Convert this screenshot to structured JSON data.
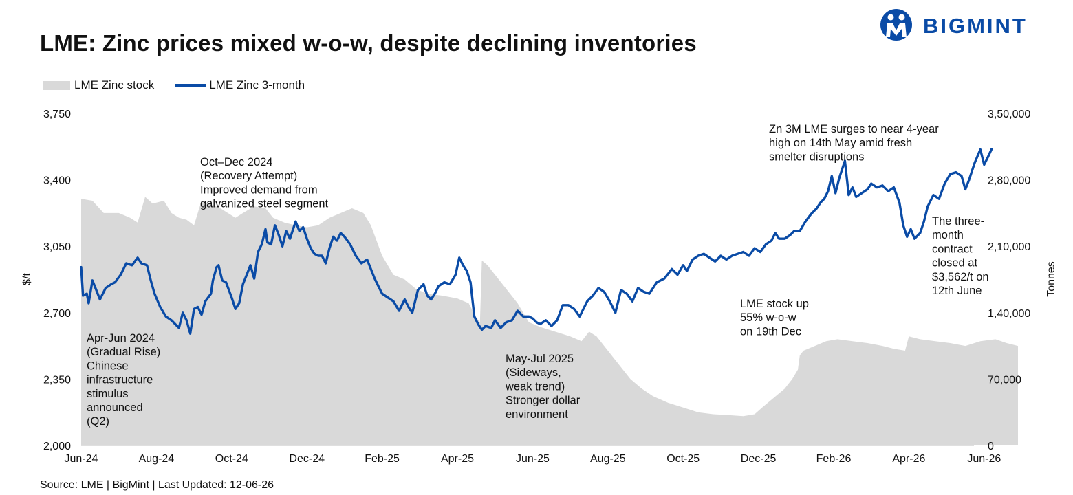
{
  "title": "LME: Zinc prices mixed w-o-w, despite declining inventories",
  "brand": {
    "name": "BIGMINT",
    "color": "#0a4ba6",
    "icon": "bigmint-logo-icon"
  },
  "source": "Source: LME | BigMint | Last Updated: 12-06-26",
  "colors": {
    "line": "#0a4ba6",
    "area": "#d9d9d9"
  },
  "chart_data": {
    "type": "line",
    "legend": {
      "placement": "top-left",
      "entries": [
        "LME Zinc stock",
        "LME Zinc 3-month"
      ]
    },
    "y_left": {
      "label": "$/t",
      "range": [
        2000,
        3750
      ],
      "ticks": [
        "2,000",
        "2,350",
        "2,700",
        "3,050",
        "3,400",
        "3,750"
      ]
    },
    "y_right": {
      "label": "Tonnes",
      "range": [
        0,
        350000
      ],
      "ticks": [
        "0",
        "70,000",
        "1,40,000",
        "2,10,000",
        "2,80,000",
        "3,50,000"
      ]
    },
    "x_range": [
      0,
      24
    ],
    "x_ticks": [
      "Jun-24",
      "Aug-24",
      "Oct-24",
      "Dec-24",
      "Feb-25",
      "Apr-25",
      "Jun-25",
      "Aug-25",
      "Oct-25",
      "Dec-25",
      "Feb-26",
      "Apr-26",
      "Jun-26"
    ],
    "grid": false,
    "series": [
      {
        "name": "LME Zinc 3-month",
        "axis": "left",
        "kind": "line",
        "points": [
          [
            0,
            2940
          ],
          [
            0.05,
            2790
          ],
          [
            0.15,
            2800
          ],
          [
            0.2,
            2750
          ],
          [
            0.3,
            2870
          ],
          [
            0.4,
            2820
          ],
          [
            0.5,
            2770
          ],
          [
            0.65,
            2830
          ],
          [
            0.8,
            2850
          ],
          [
            0.9,
            2860
          ],
          [
            1.05,
            2900
          ],
          [
            1.2,
            2960
          ],
          [
            1.35,
            2950
          ],
          [
            1.5,
            2990
          ],
          [
            1.6,
            2960
          ],
          [
            1.75,
            2950
          ],
          [
            1.85,
            2870
          ],
          [
            1.95,
            2800
          ],
          [
            2.1,
            2730
          ],
          [
            2.25,
            2680
          ],
          [
            2.4,
            2660
          ],
          [
            2.5,
            2640
          ],
          [
            2.6,
            2620
          ],
          [
            2.7,
            2700
          ],
          [
            2.8,
            2660
          ],
          [
            2.9,
            2590
          ],
          [
            3.0,
            2720
          ],
          [
            3.1,
            2730
          ],
          [
            3.2,
            2690
          ],
          [
            3.3,
            2760
          ],
          [
            3.45,
            2800
          ],
          [
            3.5,
            2870
          ],
          [
            3.6,
            2940
          ],
          [
            3.65,
            2950
          ],
          [
            3.75,
            2870
          ],
          [
            3.85,
            2860
          ],
          [
            4.0,
            2780
          ],
          [
            4.1,
            2720
          ],
          [
            4.2,
            2750
          ],
          [
            4.3,
            2850
          ],
          [
            4.4,
            2900
          ],
          [
            4.5,
            2950
          ],
          [
            4.6,
            2880
          ],
          [
            4.7,
            3020
          ],
          [
            4.8,
            3060
          ],
          [
            4.9,
            3140
          ],
          [
            4.95,
            3070
          ],
          [
            5.05,
            3060
          ],
          [
            5.15,
            3160
          ],
          [
            5.25,
            3110
          ],
          [
            5.35,
            3050
          ],
          [
            5.45,
            3130
          ],
          [
            5.55,
            3090
          ],
          [
            5.7,
            3180
          ],
          [
            5.8,
            3130
          ],
          [
            5.9,
            3150
          ],
          [
            6.0,
            3090
          ],
          [
            6.1,
            3040
          ],
          [
            6.2,
            3010
          ],
          [
            6.3,
            3000
          ],
          [
            6.4,
            3000
          ],
          [
            6.5,
            2960
          ],
          [
            6.6,
            3040
          ],
          [
            6.7,
            3100
          ],
          [
            6.8,
            3080
          ],
          [
            6.9,
            3120
          ],
          [
            7.0,
            3100
          ],
          [
            7.15,
            3060
          ],
          [
            7.3,
            3000
          ],
          [
            7.45,
            2960
          ],
          [
            7.6,
            2980
          ],
          [
            7.7,
            2930
          ],
          [
            7.8,
            2880
          ],
          [
            7.9,
            2840
          ],
          [
            8.0,
            2800
          ],
          [
            8.15,
            2780
          ],
          [
            8.3,
            2760
          ],
          [
            8.45,
            2710
          ],
          [
            8.6,
            2770
          ],
          [
            8.7,
            2730
          ],
          [
            8.8,
            2700
          ],
          [
            8.95,
            2820
          ],
          [
            9.1,
            2850
          ],
          [
            9.2,
            2790
          ],
          [
            9.3,
            2770
          ],
          [
            9.4,
            2800
          ],
          [
            9.5,
            2840
          ],
          [
            9.65,
            2860
          ],
          [
            9.8,
            2850
          ],
          [
            9.95,
            2900
          ],
          [
            10.05,
            2990
          ],
          [
            10.15,
            2950
          ],
          [
            10.25,
            2920
          ],
          [
            10.35,
            2860
          ],
          [
            10.45,
            2680
          ],
          [
            10.55,
            2640
          ],
          [
            10.65,
            2610
          ],
          [
            10.75,
            2630
          ],
          [
            10.9,
            2620
          ],
          [
            11.0,
            2660
          ],
          [
            11.15,
            2620
          ],
          [
            11.3,
            2650
          ],
          [
            11.45,
            2660
          ],
          [
            11.6,
            2710
          ],
          [
            11.75,
            2680
          ],
          [
            11.9,
            2680
          ],
          [
            12.0,
            2670
          ],
          [
            12.1,
            2650
          ],
          [
            12.2,
            2640
          ],
          [
            12.35,
            2660
          ],
          [
            12.5,
            2630
          ],
          [
            12.65,
            2660
          ],
          [
            12.8,
            2740
          ],
          [
            12.95,
            2740
          ],
          [
            13.1,
            2720
          ],
          [
            13.25,
            2680
          ],
          [
            13.45,
            2760
          ],
          [
            13.6,
            2790
          ],
          [
            13.75,
            2830
          ],
          [
            13.9,
            2810
          ],
          [
            14.05,
            2760
          ],
          [
            14.2,
            2700
          ],
          [
            14.35,
            2820
          ],
          [
            14.5,
            2800
          ],
          [
            14.65,
            2760
          ],
          [
            14.8,
            2830
          ],
          [
            14.95,
            2810
          ],
          [
            15.1,
            2800
          ],
          [
            15.3,
            2860
          ],
          [
            15.5,
            2880
          ],
          [
            15.7,
            2930
          ],
          [
            15.85,
            2900
          ],
          [
            16.0,
            2950
          ],
          [
            16.1,
            2920
          ],
          [
            16.25,
            2980
          ],
          [
            16.4,
            3000
          ],
          [
            16.55,
            3010
          ],
          [
            16.7,
            2990
          ],
          [
            16.85,
            2970
          ],
          [
            17.0,
            3000
          ],
          [
            17.15,
            2980
          ],
          [
            17.3,
            3000
          ],
          [
            17.45,
            3010
          ],
          [
            17.6,
            3020
          ],
          [
            17.75,
            3000
          ],
          [
            17.9,
            3040
          ],
          [
            18.05,
            3020
          ],
          [
            18.2,
            3060
          ],
          [
            18.35,
            3080
          ],
          [
            18.45,
            3120
          ],
          [
            18.55,
            3090
          ],
          [
            18.7,
            3090
          ],
          [
            18.85,
            3110
          ],
          [
            18.95,
            3130
          ],
          [
            19.1,
            3130
          ],
          [
            19.25,
            3180
          ],
          [
            19.4,
            3220
          ],
          [
            19.55,
            3250
          ],
          [
            19.65,
            3280
          ],
          [
            19.75,
            3300
          ],
          [
            19.85,
            3340
          ],
          [
            19.95,
            3420
          ],
          [
            20.05,
            3330
          ],
          [
            20.15,
            3410
          ],
          [
            20.3,
            3500
          ],
          [
            20.4,
            3320
          ],
          [
            20.5,
            3360
          ],
          [
            20.6,
            3310
          ],
          [
            20.75,
            3330
          ],
          [
            20.9,
            3350
          ],
          [
            21.0,
            3380
          ],
          [
            21.15,
            3360
          ],
          [
            21.3,
            3370
          ],
          [
            21.45,
            3340
          ],
          [
            21.6,
            3360
          ],
          [
            21.75,
            3280
          ],
          [
            21.85,
            3160
          ],
          [
            21.95,
            3100
          ],
          [
            22.05,
            3140
          ],
          [
            22.15,
            3090
          ],
          [
            22.3,
            3120
          ],
          [
            22.4,
            3180
          ],
          [
            22.5,
            3260
          ],
          [
            22.65,
            3320
          ],
          [
            22.8,
            3300
          ],
          [
            22.95,
            3380
          ],
          [
            23.1,
            3430
          ],
          [
            23.25,
            3440
          ],
          [
            23.4,
            3420
          ],
          [
            23.5,
            3350
          ],
          [
            23.6,
            3400
          ],
          [
            23.75,
            3490
          ],
          [
            23.9,
            3560
          ],
          [
            24.0,
            3480
          ],
          [
            24.1,
            3520
          ],
          [
            24.2,
            3562
          ]
        ]
      },
      {
        "name": "LME Zinc stock",
        "axis": "right",
        "kind": "area",
        "points": [
          [
            0,
            260000
          ],
          [
            0.3,
            258000
          ],
          [
            0.6,
            245000
          ],
          [
            1.0,
            245000
          ],
          [
            1.3,
            240000
          ],
          [
            1.5,
            235000
          ],
          [
            1.7,
            262000
          ],
          [
            1.9,
            255000
          ],
          [
            2.2,
            258000
          ],
          [
            2.4,
            245000
          ],
          [
            2.6,
            240000
          ],
          [
            2.8,
            238000
          ],
          [
            3.0,
            232000
          ],
          [
            3.2,
            258000
          ],
          [
            3.4,
            255000
          ],
          [
            3.7,
            250000
          ],
          [
            3.9,
            245000
          ],
          [
            4.1,
            240000
          ],
          [
            4.3,
            245000
          ],
          [
            4.6,
            252000
          ],
          [
            4.9,
            250000
          ],
          [
            5.1,
            240000
          ],
          [
            5.4,
            235000
          ],
          [
            5.7,
            232000
          ],
          [
            6.0,
            230000
          ],
          [
            6.3,
            232000
          ],
          [
            6.6,
            240000
          ],
          [
            6.9,
            245000
          ],
          [
            7.2,
            250000
          ],
          [
            7.5,
            245000
          ],
          [
            7.7,
            232000
          ],
          [
            8.0,
            200000
          ],
          [
            8.3,
            180000
          ],
          [
            8.6,
            175000
          ],
          [
            8.9,
            165000
          ],
          [
            9.2,
            160000
          ],
          [
            9.6,
            158000
          ],
          [
            10.0,
            155000
          ],
          [
            10.3,
            150000
          ],
          [
            10.5,
            135000
          ],
          [
            10.6,
            130000
          ],
          [
            10.65,
            195000
          ],
          [
            10.8,
            190000
          ],
          [
            11.0,
            180000
          ],
          [
            11.3,
            165000
          ],
          [
            11.6,
            150000
          ],
          [
            11.9,
            130000
          ],
          [
            12.2,
            125000
          ],
          [
            12.6,
            120000
          ],
          [
            13.0,
            115000
          ],
          [
            13.3,
            110000
          ],
          [
            13.5,
            120000
          ],
          [
            13.7,
            115000
          ],
          [
            14.0,
            100000
          ],
          [
            14.3,
            85000
          ],
          [
            14.6,
            70000
          ],
          [
            14.9,
            60000
          ],
          [
            15.2,
            52000
          ],
          [
            15.6,
            45000
          ],
          [
            16.0,
            40000
          ],
          [
            16.4,
            35000
          ],
          [
            16.8,
            33000
          ],
          [
            17.2,
            32000
          ],
          [
            17.6,
            31000
          ],
          [
            17.9,
            33000
          ],
          [
            18.1,
            40000
          ],
          [
            18.4,
            50000
          ],
          [
            18.7,
            60000
          ],
          [
            18.9,
            70000
          ],
          [
            19.05,
            80000
          ],
          [
            19.1,
            95000
          ],
          [
            19.2,
            100000
          ],
          [
            19.5,
            105000
          ],
          [
            19.8,
            110000
          ],
          [
            20.1,
            112000
          ],
          [
            20.5,
            110000
          ],
          [
            20.9,
            108000
          ],
          [
            21.3,
            105000
          ],
          [
            21.6,
            102000
          ],
          [
            21.9,
            100000
          ],
          [
            22.0,
            115000
          ],
          [
            22.3,
            112000
          ],
          [
            22.7,
            110000
          ],
          [
            23.1,
            108000
          ],
          [
            23.5,
            105000
          ],
          [
            23.9,
            110000
          ],
          [
            24.3,
            112000
          ],
          [
            24.6,
            108000
          ],
          [
            24.9,
            105000
          ]
        ]
      }
    ],
    "annotations": [
      {
        "id": "ann-apr-jun-2024",
        "lines": [
          "Apr-Jun 2024",
          "(Gradual Rise)",
          "Chinese",
          "infrastructure",
          "stimulus",
          "announced",
          "(Q2)"
        ]
      },
      {
        "id": "ann-oct-dec-2024",
        "lines": [
          "Oct–Dec 2024",
          "(Recovery Attempt)",
          "Improved demand from",
          "galvanized steel segment"
        ]
      },
      {
        "id": "ann-may-jul-2025",
        "lines": [
          "May-Jul 2025",
          "(Sideways,",
          "weak trend)",
          "Stronger dollar",
          "environment"
        ]
      },
      {
        "id": "ann-stock-up",
        "lines": [
          "LME stock up",
          "55% w-o-w",
          "on 19th Dec"
        ]
      },
      {
        "id": "ann-surge",
        "lines": [
          "Zn 3M LME surges to near 4-year",
          "high on 14th May amid fresh",
          "smelter disruptions"
        ]
      },
      {
        "id": "ann-close",
        "lines": [
          "The three-",
          "month",
          "contract",
          "closed at",
          "$3,562/t on",
          "12th June"
        ]
      }
    ]
  }
}
